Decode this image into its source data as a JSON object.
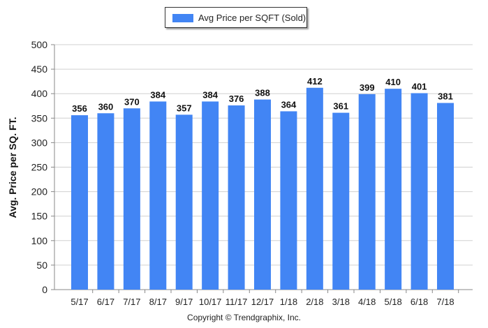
{
  "legend": {
    "label": "Avg Price per SQFT (Sold)"
  },
  "footer": {
    "copyright": "Copyright © Trendgraphix, Inc."
  },
  "colors": {
    "bar": "#4285f4",
    "grid": "#d0d0d0",
    "axis": "#888888"
  },
  "chart_data": {
    "type": "bar",
    "categories": [
      "5/17",
      "6/17",
      "7/17",
      "8/17",
      "9/17",
      "10/17",
      "11/17",
      "12/17",
      "1/18",
      "2/18",
      "3/18",
      "4/18",
      "5/18",
      "6/18",
      "7/18"
    ],
    "series": [
      {
        "name": "Avg Price per SQFT (Sold)",
        "values": [
          356,
          360,
          370,
          384,
          357,
          384,
          376,
          388,
          364,
          412,
          361,
          399,
          410,
          401,
          381
        ]
      }
    ],
    "ylabel": "Avg. Price per SQ. FT.",
    "xlabel": "",
    "ylim": [
      0,
      500
    ],
    "yticks": [
      0,
      50,
      100,
      150,
      200,
      250,
      300,
      350,
      400,
      450,
      500
    ],
    "grid": true,
    "legend_position": "top-center"
  }
}
